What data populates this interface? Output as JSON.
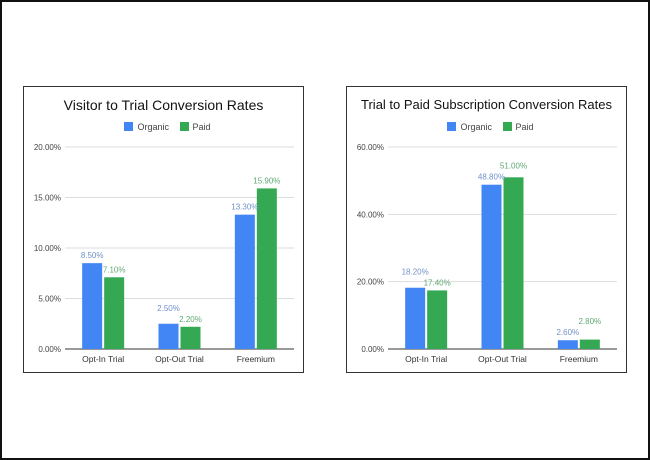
{
  "colors": {
    "organic": "#4285f4",
    "paid": "#34a853",
    "organic_label": "#7191c9",
    "paid_label": "#5fa873"
  },
  "chart_data": [
    {
      "type": "bar",
      "title": "Visitor to Trial Conversion Rates",
      "categories": [
        "Opt-In Trial",
        "Opt-Out Trial",
        "Freemium"
      ],
      "series": [
        {
          "name": "Organic",
          "values": [
            8.5,
            2.5,
            13.3
          ],
          "labels": [
            "8.50%",
            "2.50%",
            "13.30%"
          ]
        },
        {
          "name": "Paid",
          "values": [
            7.1,
            2.2,
            15.9
          ],
          "labels": [
            "7.10%",
            "2.20%",
            "15.90%"
          ]
        }
      ],
      "ylim": [
        0,
        20
      ],
      "yticks": [
        "0.00%",
        "5.00%",
        "10.00%",
        "15.00%",
        "20.00%"
      ],
      "legend": "top",
      "grid": true
    },
    {
      "type": "bar",
      "title": "Trial to Paid Subscription Conversion Rates",
      "categories": [
        "Opt-In Trial",
        "Opt-Out Trial",
        "Freemium"
      ],
      "series": [
        {
          "name": "Organic",
          "values": [
            18.2,
            48.8,
            2.6
          ],
          "labels": [
            "18.20%",
            "48.80%",
            "2.60%"
          ]
        },
        {
          "name": "Paid",
          "values": [
            17.4,
            51.0,
            2.8
          ],
          "labels": [
            "17.40%",
            "51.00%",
            "2.80%"
          ]
        }
      ],
      "ylim": [
        0,
        60
      ],
      "yticks": [
        "0.00%",
        "20.00%",
        "40.00%",
        "60.00%"
      ],
      "legend": "top",
      "grid": true
    }
  ]
}
